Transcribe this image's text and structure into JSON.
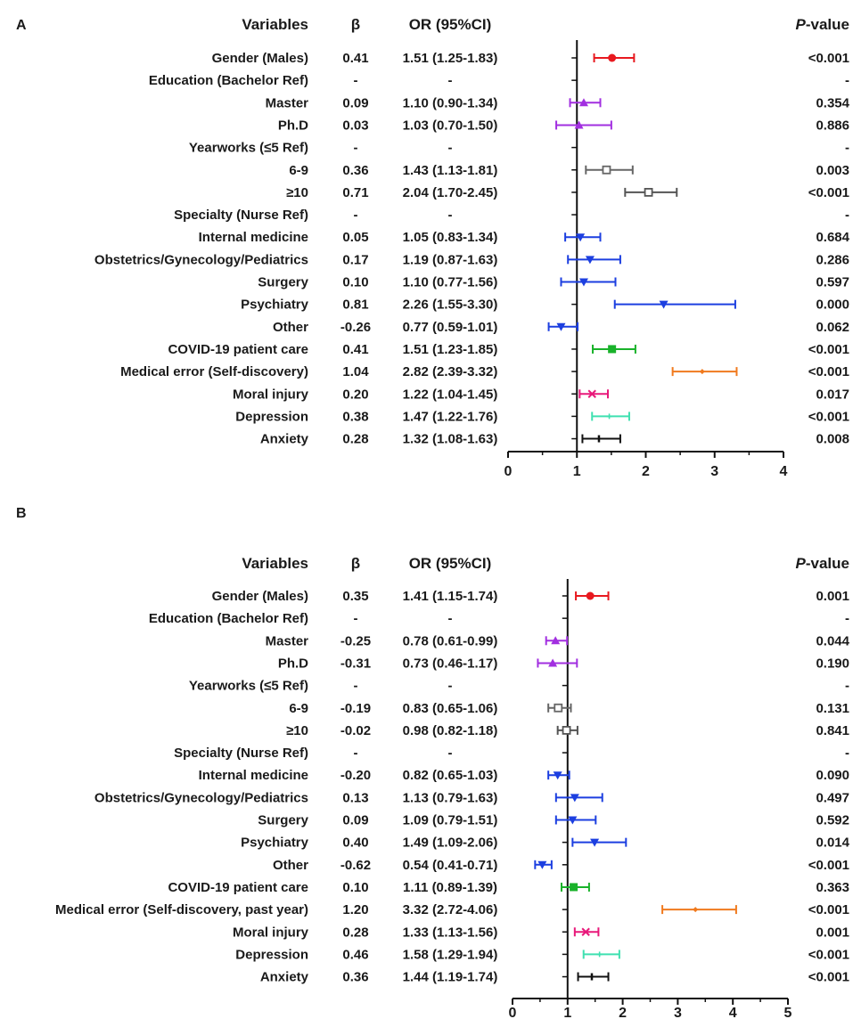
{
  "chart_data": [
    {
      "type": "forest",
      "panel_label": "A",
      "headers": {
        "variables": "Variables",
        "beta": "β",
        "or": "OR (95%CI)",
        "p_italic": "P",
        "p_rest": "-value"
      },
      "reference_line": 1,
      "xlim": [
        0,
        4
      ],
      "xticks": [
        "0",
        "1",
        "2",
        "3",
        "4"
      ],
      "rows": [
        {
          "label": "Gender (Males)",
          "beta": "0.41",
          "or_text": "1.51 (1.25-1.83)",
          "p": "<0.001",
          "or": 1.51,
          "lo": 1.25,
          "hi": 1.83,
          "color": "#e8191f",
          "marker": "circle"
        },
        {
          "label": "Education (Bachelor Ref)",
          "beta": "-",
          "or_text": "-",
          "p": "-"
        },
        {
          "label": "Master",
          "beta": "0.09",
          "or_text": "1.10 (0.90-1.34)",
          "p": "0.354",
          "or": 1.1,
          "lo": 0.9,
          "hi": 1.34,
          "color": "#a22fe0",
          "marker": "triangle-up"
        },
        {
          "label": "Ph.D",
          "beta": "0.03",
          "or_text": "1.03 (0.70-1.50)",
          "p": "0.886",
          "or": 1.03,
          "lo": 0.7,
          "hi": 1.5,
          "color": "#a22fe0",
          "marker": "triangle-up"
        },
        {
          "label": "Yearworks (≤5 Ref)",
          "beta": "-",
          "or_text": "-",
          "p": "-"
        },
        {
          "label": "6-9",
          "beta": "0.36",
          "or_text": "1.43 (1.13-1.81)",
          "p": "0.003",
          "or": 1.43,
          "lo": 1.13,
          "hi": 1.81,
          "color": "#666666",
          "marker": "square-open"
        },
        {
          "label": "≥10",
          "beta": "0.71",
          "or_text": "2.04 (1.70-2.45)",
          "p": "<0.001",
          "or": 2.04,
          "lo": 1.7,
          "hi": 2.45,
          "color": "#555555",
          "marker": "square-open"
        },
        {
          "label": "Specialty (Nurse Ref)",
          "beta": "-",
          "or_text": "-",
          "p": "-"
        },
        {
          "label": "Internal medicine",
          "beta": "0.05",
          "or_text": "1.05 (0.83-1.34)",
          "p": "0.684",
          "or": 1.05,
          "lo": 0.83,
          "hi": 1.34,
          "color": "#1c3fe0",
          "marker": "triangle-down"
        },
        {
          "label": "Obstetrics/Gynecology/Pediatrics",
          "beta": "0.17",
          "or_text": "1.19 (0.87-1.63)",
          "p": "0.286",
          "or": 1.19,
          "lo": 0.87,
          "hi": 1.63,
          "color": "#1c3fe0",
          "marker": "triangle-down"
        },
        {
          "label": "Surgery",
          "beta": "0.10",
          "or_text": "1.10 (0.77-1.56)",
          "p": "0.597",
          "or": 1.1,
          "lo": 0.77,
          "hi": 1.56,
          "color": "#1c3fe0",
          "marker": "triangle-down"
        },
        {
          "label": "Psychiatry",
          "beta": "0.81",
          "or_text": "2.26 (1.55-3.30)",
          "p": "0.000",
          "or": 2.26,
          "lo": 1.55,
          "hi": 3.3,
          "color": "#1c3fe0",
          "marker": "triangle-down"
        },
        {
          "label": "Other",
          "beta": "-0.26",
          "or_text": "0.77 (0.59-1.01)",
          "p": "0.062",
          "or": 0.77,
          "lo": 0.59,
          "hi": 1.01,
          "color": "#1c3fe0",
          "marker": "triangle-down"
        },
        {
          "label": "COVID-19 patient care",
          "beta": "0.41",
          "or_text": "1.51 (1.23-1.85)",
          "p": "<0.001",
          "or": 1.51,
          "lo": 1.23,
          "hi": 1.85,
          "color": "#19b22a",
          "marker": "square"
        },
        {
          "label": "Medical error (Self-discovery)",
          "beta": "1.04",
          "or_text": "2.82 (2.39-3.32)",
          "p": "<0.001",
          "or": 2.82,
          "lo": 2.39,
          "hi": 3.32,
          "color": "#f07a1e",
          "marker": "diamond"
        },
        {
          "label": "Moral injury",
          "beta": "0.20",
          "or_text": "1.22 (1.04-1.45)",
          "p": "0.017",
          "or": 1.22,
          "lo": 1.04,
          "hi": 1.45,
          "color": "#e8197a",
          "marker": "cross"
        },
        {
          "label": "Depression",
          "beta": "0.38",
          "or_text": "1.47 (1.22-1.76)",
          "p": "<0.001",
          "or": 1.47,
          "lo": 1.22,
          "hi": 1.76,
          "color": "#3fe0b0",
          "marker": "star"
        },
        {
          "label": "Anxiety",
          "beta": "0.28",
          "or_text": "1.32 (1.08-1.63)",
          "p": "0.008",
          "or": 1.32,
          "lo": 1.08,
          "hi": 1.63,
          "color": "#111111",
          "marker": "bar"
        }
      ]
    },
    {
      "type": "forest",
      "panel_label": "B",
      "headers": {
        "variables": "Variables",
        "beta": "β",
        "or": "OR (95%CI)",
        "p_italic": "P",
        "p_rest": "-value"
      },
      "reference_line": 1,
      "xlim": [
        0,
        5
      ],
      "xticks": [
        "0",
        "1",
        "2",
        "3",
        "4",
        "5"
      ],
      "rows": [
        {
          "label": "Gender (Males)",
          "beta": "0.35",
          "or_text": "1.41 (1.15-1.74)",
          "p": "0.001",
          "or": 1.41,
          "lo": 1.15,
          "hi": 1.74,
          "color": "#e8191f",
          "marker": "circle"
        },
        {
          "label": "Education (Bachelor Ref)",
          "beta": "-",
          "or_text": "-",
          "p": "-"
        },
        {
          "label": "Master",
          "beta": "-0.25",
          "or_text": "0.78 (0.61-0.99)",
          "p": "0.044",
          "or": 0.78,
          "lo": 0.61,
          "hi": 0.99,
          "color": "#a22fe0",
          "marker": "triangle-up"
        },
        {
          "label": "Ph.D",
          "beta": "-0.31",
          "or_text": "0.73 (0.46-1.17)",
          "p": "0.190",
          "or": 0.73,
          "lo": 0.46,
          "hi": 1.17,
          "color": "#a22fe0",
          "marker": "triangle-up"
        },
        {
          "label": "Yearworks (≤5 Ref)",
          "beta": "-",
          "or_text": "-",
          "p": "-"
        },
        {
          "label": "6-9",
          "beta": "-0.19",
          "or_text": "0.83 (0.65-1.06)",
          "p": "0.131",
          "or": 0.83,
          "lo": 0.65,
          "hi": 1.06,
          "color": "#666666",
          "marker": "square-open"
        },
        {
          "label": "≥10",
          "beta": "-0.02",
          "or_text": "0.98 (0.82-1.18)",
          "p": "0.841",
          "or": 0.98,
          "lo": 0.82,
          "hi": 1.18,
          "color": "#555555",
          "marker": "square-open"
        },
        {
          "label": "Specialty (Nurse Ref)",
          "beta": "-",
          "or_text": "-",
          "p": "-"
        },
        {
          "label": "Internal medicine",
          "beta": "-0.20",
          "or_text": "0.82 (0.65-1.03)",
          "p": "0.090",
          "or": 0.82,
          "lo": 0.65,
          "hi": 1.03,
          "color": "#1c3fe0",
          "marker": "triangle-down"
        },
        {
          "label": "Obstetrics/Gynecology/Pediatrics",
          "beta": "0.13",
          "or_text": "1.13 (0.79-1.63)",
          "p": "0.497",
          "or": 1.13,
          "lo": 0.79,
          "hi": 1.63,
          "color": "#1c3fe0",
          "marker": "triangle-down"
        },
        {
          "label": "Surgery",
          "beta": "0.09",
          "or_text": "1.09 (0.79-1.51)",
          "p": "0.592",
          "or": 1.09,
          "lo": 0.79,
          "hi": 1.51,
          "color": "#1c3fe0",
          "marker": "triangle-down"
        },
        {
          "label": "Psychiatry",
          "beta": "0.40",
          "or_text": "1.49 (1.09-2.06)",
          "p": "0.014",
          "or": 1.49,
          "lo": 1.09,
          "hi": 2.06,
          "color": "#1c3fe0",
          "marker": "triangle-down"
        },
        {
          "label": "Other",
          "beta": "-0.62",
          "or_text": "0.54 (0.41-0.71)",
          "p": "<0.001",
          "or": 0.54,
          "lo": 0.41,
          "hi": 0.71,
          "color": "#1c3fe0",
          "marker": "triangle-down"
        },
        {
          "label": "COVID-19 patient care",
          "beta": "0.10",
          "or_text": "1.11 (0.89-1.39)",
          "p": "0.363",
          "or": 1.11,
          "lo": 0.89,
          "hi": 1.39,
          "color": "#19b22a",
          "marker": "square"
        },
        {
          "label": "Medical error (Self-discovery, past year)",
          "beta": "1.20",
          "or_text": "3.32 (2.72-4.06)",
          "p": "<0.001",
          "or": 3.32,
          "lo": 2.72,
          "hi": 4.06,
          "color": "#f07a1e",
          "marker": "diamond"
        },
        {
          "label": "Moral injury",
          "beta": "0.28",
          "or_text": "1.33 (1.13-1.56)",
          "p": "0.001",
          "or": 1.33,
          "lo": 1.13,
          "hi": 1.56,
          "color": "#e8197a",
          "marker": "cross"
        },
        {
          "label": "Depression",
          "beta": "0.46",
          "or_text": "1.58 (1.29-1.94)",
          "p": "<0.001",
          "or": 1.58,
          "lo": 1.29,
          "hi": 1.94,
          "color": "#3fe0b0",
          "marker": "star"
        },
        {
          "label": "Anxiety",
          "beta": "0.36",
          "or_text": "1.44 (1.19-1.74)",
          "p": "<0.001",
          "or": 1.44,
          "lo": 1.19,
          "hi": 1.74,
          "color": "#111111",
          "marker": "bar"
        }
      ]
    }
  ]
}
